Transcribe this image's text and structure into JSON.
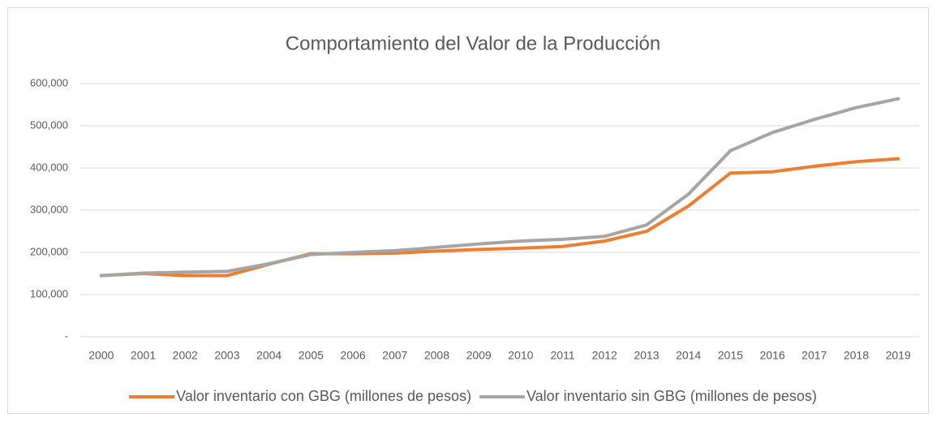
{
  "chart_data": {
    "type": "line",
    "title": "Comportamiento del Valor de la Producción",
    "categories": [
      "2000",
      "2001",
      "2002",
      "2003",
      "2004",
      "2005",
      "2006",
      "2007",
      "2008",
      "2009",
      "2010",
      "2011",
      "2012",
      "2013",
      "2014",
      "2015",
      "2016",
      "2017",
      "2018",
      "2019"
    ],
    "series": [
      {
        "name": "Valor inventario con GBG (millones de pesos)",
        "color": "#ed7d31",
        "values": [
          145000,
          150000,
          145000,
          145000,
          172000,
          197000,
          197000,
          198000,
          203000,
          207000,
          210000,
          214000,
          227000,
          250000,
          310000,
          388000,
          391000,
          404000,
          415000,
          422000
        ]
      },
      {
        "name": "Valor inventario sin GBG (millones de pesos)",
        "color": "#a5a5a5",
        "values": [
          145000,
          151000,
          153000,
          155000,
          173000,
          195000,
          200000,
          204000,
          212000,
          220000,
          227000,
          231000,
          238000,
          265000,
          338000,
          441000,
          484000,
          515000,
          543000,
          564000
        ]
      }
    ],
    "ylim": [
      0,
      600000
    ],
    "yticks": [
      {
        "value": 0,
        "label": "-"
      },
      {
        "value": 100000,
        "label": "100,000"
      },
      {
        "value": 200000,
        "label": "200,000"
      },
      {
        "value": 300000,
        "label": "300,000"
      },
      {
        "value": 400000,
        "label": "400,000"
      },
      {
        "value": 500000,
        "label": "500,000"
      },
      {
        "value": 600000,
        "label": "600,000"
      }
    ],
    "grid": true,
    "legend": "bottom"
  }
}
